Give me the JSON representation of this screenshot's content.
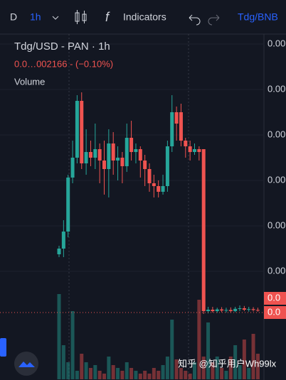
{
  "toolbar": {
    "resolution_letter": "D",
    "interval": "1h",
    "indicators": "Indicators",
    "pair": "Tdg/BNB"
  },
  "chart_data": {
    "type": "candlestick",
    "title": "Tdg/USD - PAN · 1h",
    "subtitle": "0.0…002166 - (−0.10%)",
    "volume_label": "Volume",
    "ylim": [
      -22,
      100
    ],
    "yticks": [
      {
        "value": 96,
        "label": "0.00"
      },
      {
        "value": 80,
        "label": "0.00"
      },
      {
        "value": 64,
        "label": "0.00"
      },
      {
        "value": 48,
        "label": "0.00"
      },
      {
        "value": 32,
        "label": "0.00"
      },
      {
        "value": 16,
        "label": "0.00"
      }
    ],
    "price_labels": [
      {
        "value": 6.5,
        "label": "0.0"
      },
      {
        "value": 1.5,
        "label": "0.0"
      }
    ],
    "open": [
      22,
      24,
      30,
      49,
      56,
      76,
      54,
      58,
      56,
      59,
      55,
      52,
      61,
      55,
      56,
      53,
      63,
      58,
      59,
      55,
      52,
      47,
      46,
      44,
      46,
      60,
      72,
      72,
      62,
      60,
      58,
      59,
      59,
      2,
      2.5,
      2,
      2.6,
      2.2,
      2.4,
      2,
      2.8,
      3,
      2.5,
      2.7,
      2.4
    ],
    "high": [
      25,
      34,
      50,
      62,
      78,
      79,
      66,
      62,
      68,
      61,
      62,
      66,
      65,
      60,
      58,
      68,
      69,
      61,
      60,
      57,
      54,
      50,
      48,
      50,
      62,
      78,
      74,
      75,
      63,
      62,
      61,
      60,
      59,
      3.5,
      3.5,
      3.2,
      3.4,
      3.2,
      3.3,
      3.5,
      4,
      3.8,
      3.5,
      3.4,
      3.2
    ],
    "low": [
      21,
      21,
      28,
      47,
      54,
      52,
      50,
      53,
      52,
      47,
      43,
      42,
      50,
      48,
      47,
      51,
      55,
      54,
      49,
      46,
      44,
      42,
      42,
      43,
      44,
      58,
      62,
      60,
      56,
      55,
      57,
      55,
      1,
      1.2,
      1.5,
      1.4,
      1.6,
      1.5,
      1.4,
      1.6,
      2,
      2,
      1.8,
      1.9,
      1.8
    ],
    "close": [
      24,
      30,
      49,
      56,
      76,
      54,
      58,
      56,
      59,
      55,
      52,
      61,
      55,
      56,
      53,
      63,
      58,
      59,
      55,
      52,
      47,
      46,
      44,
      46,
      60,
      72,
      68,
      62,
      60,
      58,
      59,
      58,
      2,
      2.5,
      2,
      2.6,
      2.2,
      2.4,
      2,
      2.8,
      3,
      2.5,
      2.7,
      2.4,
      2.2
    ],
    "volume": [
      30,
      12,
      6,
      24,
      3,
      9,
      6,
      4,
      5,
      3,
      2,
      8,
      5,
      4,
      3,
      6,
      4,
      3,
      2,
      3,
      2,
      4,
      3,
      5,
      8,
      21,
      7,
      4,
      3,
      2,
      6,
      28,
      8,
      20,
      6,
      8,
      4,
      3,
      8,
      12,
      5,
      14,
      4,
      16,
      9
    ],
    "volume_max": 30,
    "up_color": "#26a69a",
    "down_color": "#ef5350"
  },
  "watermark": "知乎 @知乎用户Wh99lx"
}
